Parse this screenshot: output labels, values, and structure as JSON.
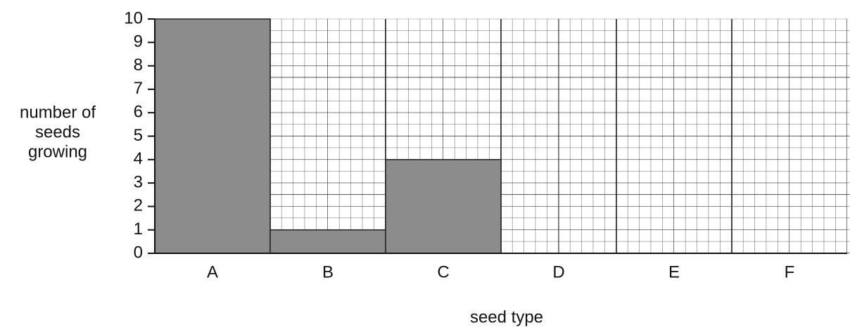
{
  "chart_data": {
    "type": "bar",
    "ylabel": [
      "number of",
      "seeds",
      "growing"
    ],
    "xlabel": "seed type",
    "categories": [
      "A",
      "B",
      "C",
      "D",
      "E",
      "F"
    ],
    "values": [
      10,
      1,
      4,
      null,
      null,
      null
    ],
    "color": "#8c8c8c",
    "ylim": [
      0,
      10
    ],
    "yticks": [
      0,
      1,
      2,
      3,
      4,
      5,
      6,
      7,
      8,
      9,
      10
    ],
    "grid": true
  }
}
